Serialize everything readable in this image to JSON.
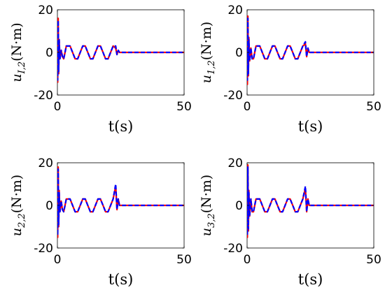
{
  "chart_data": [
    {
      "type": "line",
      "xlabel": "t(s)",
      "ylabel": {
        "symbol": "u",
        "subscript": "I,2",
        "unit": "(N·m)"
      },
      "xlim": [
        0,
        50
      ],
      "ylim": [
        -20,
        20
      ],
      "xticks": [
        "0",
        "50"
      ],
      "yticks": [
        "20",
        "0",
        "-20"
      ],
      "series": [
        {
          "color": "#ff0000",
          "style": "solid",
          "x": [
            0,
            0.1,
            0.3,
            0.5,
            0.7,
            1.0,
            1.5,
            2.0,
            2.5,
            3.0,
            3.5,
            4.0,
            5.0,
            6.0,
            7.0,
            8.0,
            9.0,
            10.0,
            11.0,
            12.0,
            13.0,
            14.0,
            15.0,
            16.0,
            17.0,
            18.0,
            19.0,
            20.0,
            21.0,
            22.0,
            23.0,
            23.5,
            24.0,
            24.5,
            25.0,
            30.0,
            35.0,
            40.0,
            45.0,
            50.0
          ],
          "y": [
            0,
            -14,
            16,
            -10,
            6,
            -3,
            1,
            -2,
            -3,
            0,
            3,
            3,
            3,
            0,
            -3,
            -3,
            0,
            3,
            3,
            0,
            -3,
            -3,
            0,
            3,
            3,
            0,
            -3,
            -3,
            0,
            3,
            2,
            -1,
            1,
            0,
            0,
            0,
            0,
            0,
            0,
            0
          ]
        },
        {
          "color": "#0000ff",
          "style": "dashed",
          "x": [
            0,
            0.1,
            0.3,
            0.5,
            0.7,
            1.0,
            1.5,
            2.0,
            2.5,
            3.0,
            3.5,
            4.0,
            5.0,
            6.0,
            7.0,
            8.0,
            9.0,
            10.0,
            11.0,
            12.0,
            13.0,
            14.0,
            15.0,
            16.0,
            17.0,
            18.0,
            19.0,
            20.0,
            21.0,
            22.0,
            23.0,
            23.5,
            24.0,
            24.5,
            25.0,
            30.0,
            35.0,
            40.0,
            45.0,
            50.0
          ],
          "y": [
            0,
            -13,
            15,
            -9,
            6,
            -3,
            1,
            -2,
            -3,
            0,
            3,
            3,
            3,
            0,
            -3,
            -3,
            0,
            3,
            3,
            0,
            -3,
            -3,
            0,
            3,
            3,
            0,
            -3,
            -3,
            0,
            3,
            3,
            -1,
            1,
            0,
            0,
            0,
            0,
            0,
            0,
            0
          ]
        }
      ]
    },
    {
      "type": "line",
      "xlabel": "t(s)",
      "ylabel": {
        "symbol": "u",
        "subscript": "1,2",
        "unit": "(N·m)"
      },
      "xlim": [
        0,
        50
      ],
      "ylim": [
        -20,
        20
      ],
      "xticks": [
        "0",
        "50"
      ],
      "yticks": [
        "20",
        "0",
        "-20"
      ],
      "series": [
        {
          "color": "#ff0000",
          "style": "solid",
          "x": [
            0,
            0.1,
            0.3,
            0.5,
            0.7,
            1.0,
            1.5,
            2.0,
            2.5,
            3.0,
            3.5,
            4.0,
            5.0,
            6.0,
            7.0,
            8.0,
            9.0,
            10.0,
            11.0,
            12.0,
            13.0,
            14.0,
            15.0,
            16.0,
            17.0,
            18.0,
            19.0,
            20.0,
            21.0,
            22.0,
            23.0,
            23.5,
            24.0,
            24.5,
            25.0,
            30.0,
            35.0,
            40.0,
            45.0,
            50.0
          ],
          "y": [
            0,
            -15,
            17,
            -11,
            7,
            -4,
            2,
            -3,
            -3,
            0,
            3,
            3,
            3,
            0,
            -3,
            -3,
            0,
            3,
            3,
            0,
            -3,
            -3,
            0,
            3,
            3,
            0,
            -3,
            -3,
            0,
            3,
            4,
            -2,
            2,
            0,
            0,
            0,
            0,
            0,
            0,
            0
          ]
        },
        {
          "color": "#0000ff",
          "style": "dashed",
          "x": [
            0,
            0.1,
            0.3,
            0.5,
            0.7,
            1.0,
            1.5,
            2.0,
            2.5,
            3.0,
            3.5,
            4.0,
            5.0,
            6.0,
            7.0,
            8.0,
            9.0,
            10.0,
            11.0,
            12.0,
            13.0,
            14.0,
            15.0,
            16.0,
            17.0,
            18.0,
            19.0,
            20.0,
            21.0,
            22.0,
            23.0,
            23.5,
            24.0,
            24.5,
            25.0,
            30.0,
            35.0,
            40.0,
            45.0,
            50.0
          ],
          "y": [
            0,
            -13,
            16,
            -10,
            6,
            -4,
            2,
            -3,
            -3,
            0,
            3,
            3,
            3,
            0,
            -3,
            -3,
            0,
            3,
            3,
            0,
            -3,
            -3,
            0,
            3,
            3,
            0,
            -3,
            -3,
            0,
            3,
            5,
            -2,
            2,
            0,
            0,
            0,
            0,
            0,
            0,
            0
          ]
        }
      ]
    },
    {
      "type": "line",
      "xlabel": "t(s)",
      "ylabel": {
        "symbol": "u",
        "subscript": "2,2",
        "unit": "(N·m)"
      },
      "xlim": [
        0,
        50
      ],
      "ylim": [
        -20,
        20
      ],
      "xticks": [
        "0",
        "50"
      ],
      "yticks": [
        "20",
        "0",
        "-20"
      ],
      "series": [
        {
          "color": "#ff0000",
          "style": "solid",
          "x": [
            0,
            0.1,
            0.3,
            0.5,
            0.7,
            1.0,
            1.5,
            2.0,
            2.5,
            3.0,
            3.5,
            4.0,
            5.0,
            6.0,
            7.0,
            8.0,
            9.0,
            10.0,
            11.0,
            12.0,
            13.0,
            14.0,
            15.0,
            16.0,
            17.0,
            18.0,
            19.0,
            20.0,
            21.0,
            22.0,
            23.0,
            23.5,
            24.0,
            24.5,
            25.0,
            30.0,
            35.0,
            40.0,
            45.0,
            50.0
          ],
          "y": [
            0,
            -15,
            18,
            -10,
            7,
            -3,
            2,
            -2,
            -3,
            0,
            3,
            3,
            3,
            0,
            -3,
            -3,
            0,
            3,
            3,
            0,
            -3,
            -3,
            0,
            3,
            3,
            0,
            -3,
            -3,
            0,
            3,
            9,
            -2,
            3,
            0,
            0,
            0,
            0,
            0,
            0,
            0
          ]
        },
        {
          "color": "#0000ff",
          "style": "dashed",
          "x": [
            0,
            0.1,
            0.3,
            0.5,
            0.7,
            1.0,
            1.5,
            2.0,
            2.5,
            3.0,
            3.5,
            4.0,
            5.0,
            6.0,
            7.0,
            8.0,
            9.0,
            10.0,
            11.0,
            12.0,
            13.0,
            14.0,
            15.0,
            16.0,
            17.0,
            18.0,
            19.0,
            20.0,
            21.0,
            22.0,
            23.0,
            23.5,
            24.0,
            24.5,
            25.0,
            30.0,
            35.0,
            40.0,
            45.0,
            50.0
          ],
          "y": [
            0,
            -14,
            17,
            -9,
            6,
            -3,
            2,
            -2,
            -3,
            0,
            3,
            3,
            3,
            0,
            -3,
            -3,
            0,
            3,
            3,
            0,
            -3,
            -3,
            0,
            3,
            3,
            0,
            -3,
            -3,
            0,
            3,
            10,
            -2,
            3,
            0,
            0,
            0,
            0,
            0,
            0,
            0
          ]
        }
      ]
    },
    {
      "type": "line",
      "xlabel": "t(s)",
      "ylabel": {
        "symbol": "u",
        "subscript": "3,2",
        "unit": "(N·m)"
      },
      "xlim": [
        0,
        50
      ],
      "ylim": [
        -20,
        20
      ],
      "xticks": [
        "0",
        "50"
      ],
      "yticks": [
        "20",
        "0",
        "-20"
      ],
      "series": [
        {
          "color": "#ff0000",
          "style": "solid",
          "x": [
            0,
            0.1,
            0.3,
            0.5,
            0.7,
            1.0,
            1.5,
            2.0,
            2.5,
            3.0,
            3.5,
            4.0,
            5.0,
            6.0,
            7.0,
            8.0,
            9.0,
            10.0,
            11.0,
            12.0,
            13.0,
            14.0,
            15.0,
            16.0,
            17.0,
            18.0,
            19.0,
            20.0,
            21.0,
            22.0,
            23.0,
            23.5,
            24.0,
            24.5,
            25.0,
            30.0,
            35.0,
            40.0,
            45.0,
            50.0
          ],
          "y": [
            0,
            -15,
            19,
            -12,
            7,
            -5,
            3,
            -3,
            -3,
            0,
            3,
            3,
            3,
            0,
            -3,
            -3,
            0,
            3,
            3,
            0,
            -3,
            -3,
            0,
            3,
            3,
            0,
            -3,
            -3,
            0,
            3,
            8,
            -3,
            3,
            0,
            0,
            0,
            0,
            0,
            0,
            0
          ]
        },
        {
          "color": "#0000ff",
          "style": "dashed",
          "x": [
            0,
            0.1,
            0.3,
            0.5,
            0.7,
            1.0,
            1.5,
            2.0,
            2.5,
            3.0,
            3.5,
            4.0,
            5.0,
            6.0,
            7.0,
            8.0,
            9.0,
            10.0,
            11.0,
            12.0,
            13.0,
            14.0,
            15.0,
            16.0,
            17.0,
            18.0,
            19.0,
            20.0,
            21.0,
            22.0,
            23.0,
            23.5,
            24.0,
            24.5,
            25.0,
            30.0,
            35.0,
            40.0,
            45.0,
            50.0
          ],
          "y": [
            0,
            -14,
            18,
            -11,
            6,
            -5,
            3,
            -3,
            -3,
            0,
            3,
            3,
            3,
            0,
            -3,
            -3,
            0,
            3,
            3,
            0,
            -3,
            -3,
            0,
            3,
            3,
            0,
            -3,
            -3,
            0,
            3,
            9,
            -3,
            3,
            0,
            0,
            0,
            0,
            0,
            0,
            0
          ]
        }
      ]
    }
  ]
}
